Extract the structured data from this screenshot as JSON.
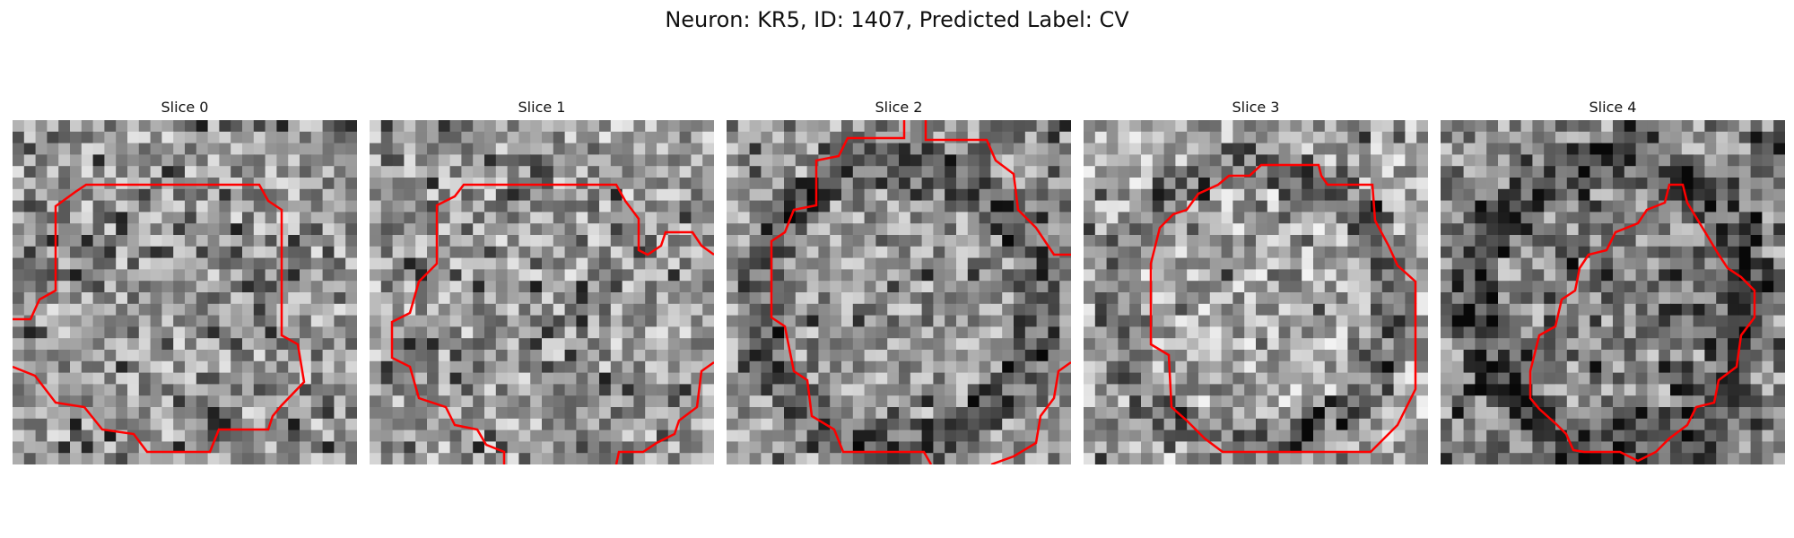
{
  "figure": {
    "title": "Neuron: KR5, ID: 1407, Predicted Label: CV",
    "contour_color": "#ff0000",
    "colormap": "grayscale",
    "panels": [
      {
        "title": "Slice 0"
      },
      {
        "title": "Slice 1"
      },
      {
        "title": "Slice 2"
      },
      {
        "title": "Slice 3"
      },
      {
        "title": "Slice 4"
      }
    ]
  }
}
